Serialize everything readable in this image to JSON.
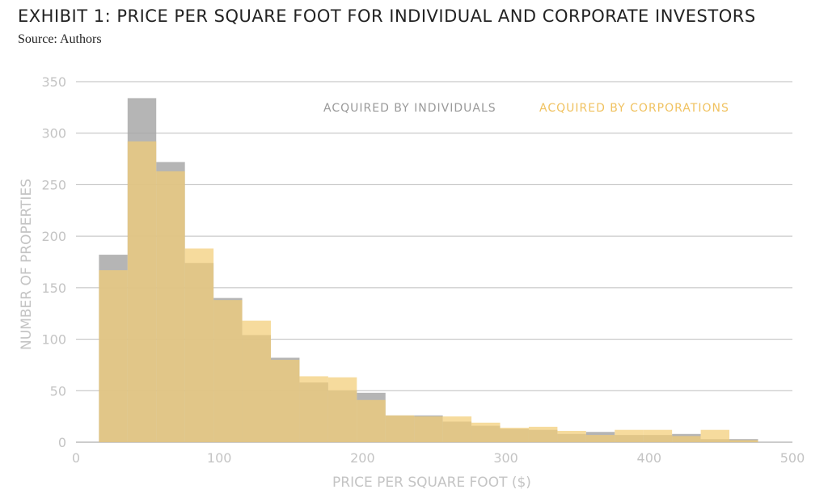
{
  "header": {
    "title": "EXHIBIT 1: PRICE PER SQUARE FOOT FOR INDIVIDUAL AND CORPORATE INVESTORS",
    "source": "Source: Authors"
  },
  "chart_data": {
    "type": "bar",
    "title": "EXHIBIT 1: PRICE PER SQUARE FOOT FOR INDIVIDUAL AND CORPORATE INVESTORS",
    "subtitle": "Source: Authors",
    "xlabel": "PRICE PER SQUARE FOOT ($)",
    "ylabel": "NUMBER OF PROPERTIES",
    "xlim": [
      0,
      500
    ],
    "ylim": [
      0,
      350
    ],
    "xticks": [
      0,
      100,
      200,
      300,
      400,
      500
    ],
    "yticks": [
      0,
      50,
      100,
      150,
      200,
      250,
      300,
      350
    ],
    "grid": "horizontal",
    "legend_position": "top-right",
    "bins": [
      [
        16,
        36
      ],
      [
        36,
        56
      ],
      [
        56,
        76
      ],
      [
        76,
        96
      ],
      [
        96,
        116
      ],
      [
        116,
        136
      ],
      [
        136,
        156
      ],
      [
        156,
        176
      ],
      [
        176,
        196
      ],
      [
        196,
        216
      ],
      [
        216,
        236
      ],
      [
        236,
        256
      ],
      [
        256,
        276
      ],
      [
        276,
        296
      ],
      [
        296,
        316
      ],
      [
        316,
        336
      ],
      [
        336,
        356
      ],
      [
        356,
        376
      ],
      [
        376,
        396
      ],
      [
        396,
        416
      ],
      [
        416,
        436
      ],
      [
        436,
        456
      ],
      [
        456,
        476
      ]
    ],
    "series": [
      {
        "name": "ACQUIRED BY INDIVIDUALS",
        "color": "#a8a8a8",
        "values": [
          182,
          334,
          272,
          174,
          140,
          104,
          82,
          58,
          50,
          48,
          26,
          26,
          20,
          16,
          13,
          12,
          8,
          10,
          7,
          7,
          8,
          3,
          3
        ]
      },
      {
        "name": "ACQUIRED BY CORPORATIONS",
        "color": "#f3cd77",
        "values": [
          167,
          292,
          263,
          188,
          138,
          118,
          80,
          64,
          63,
          41,
          26,
          25,
          25,
          19,
          14,
          15,
          11,
          7,
          12,
          12,
          6,
          12,
          2
        ]
      }
    ]
  }
}
